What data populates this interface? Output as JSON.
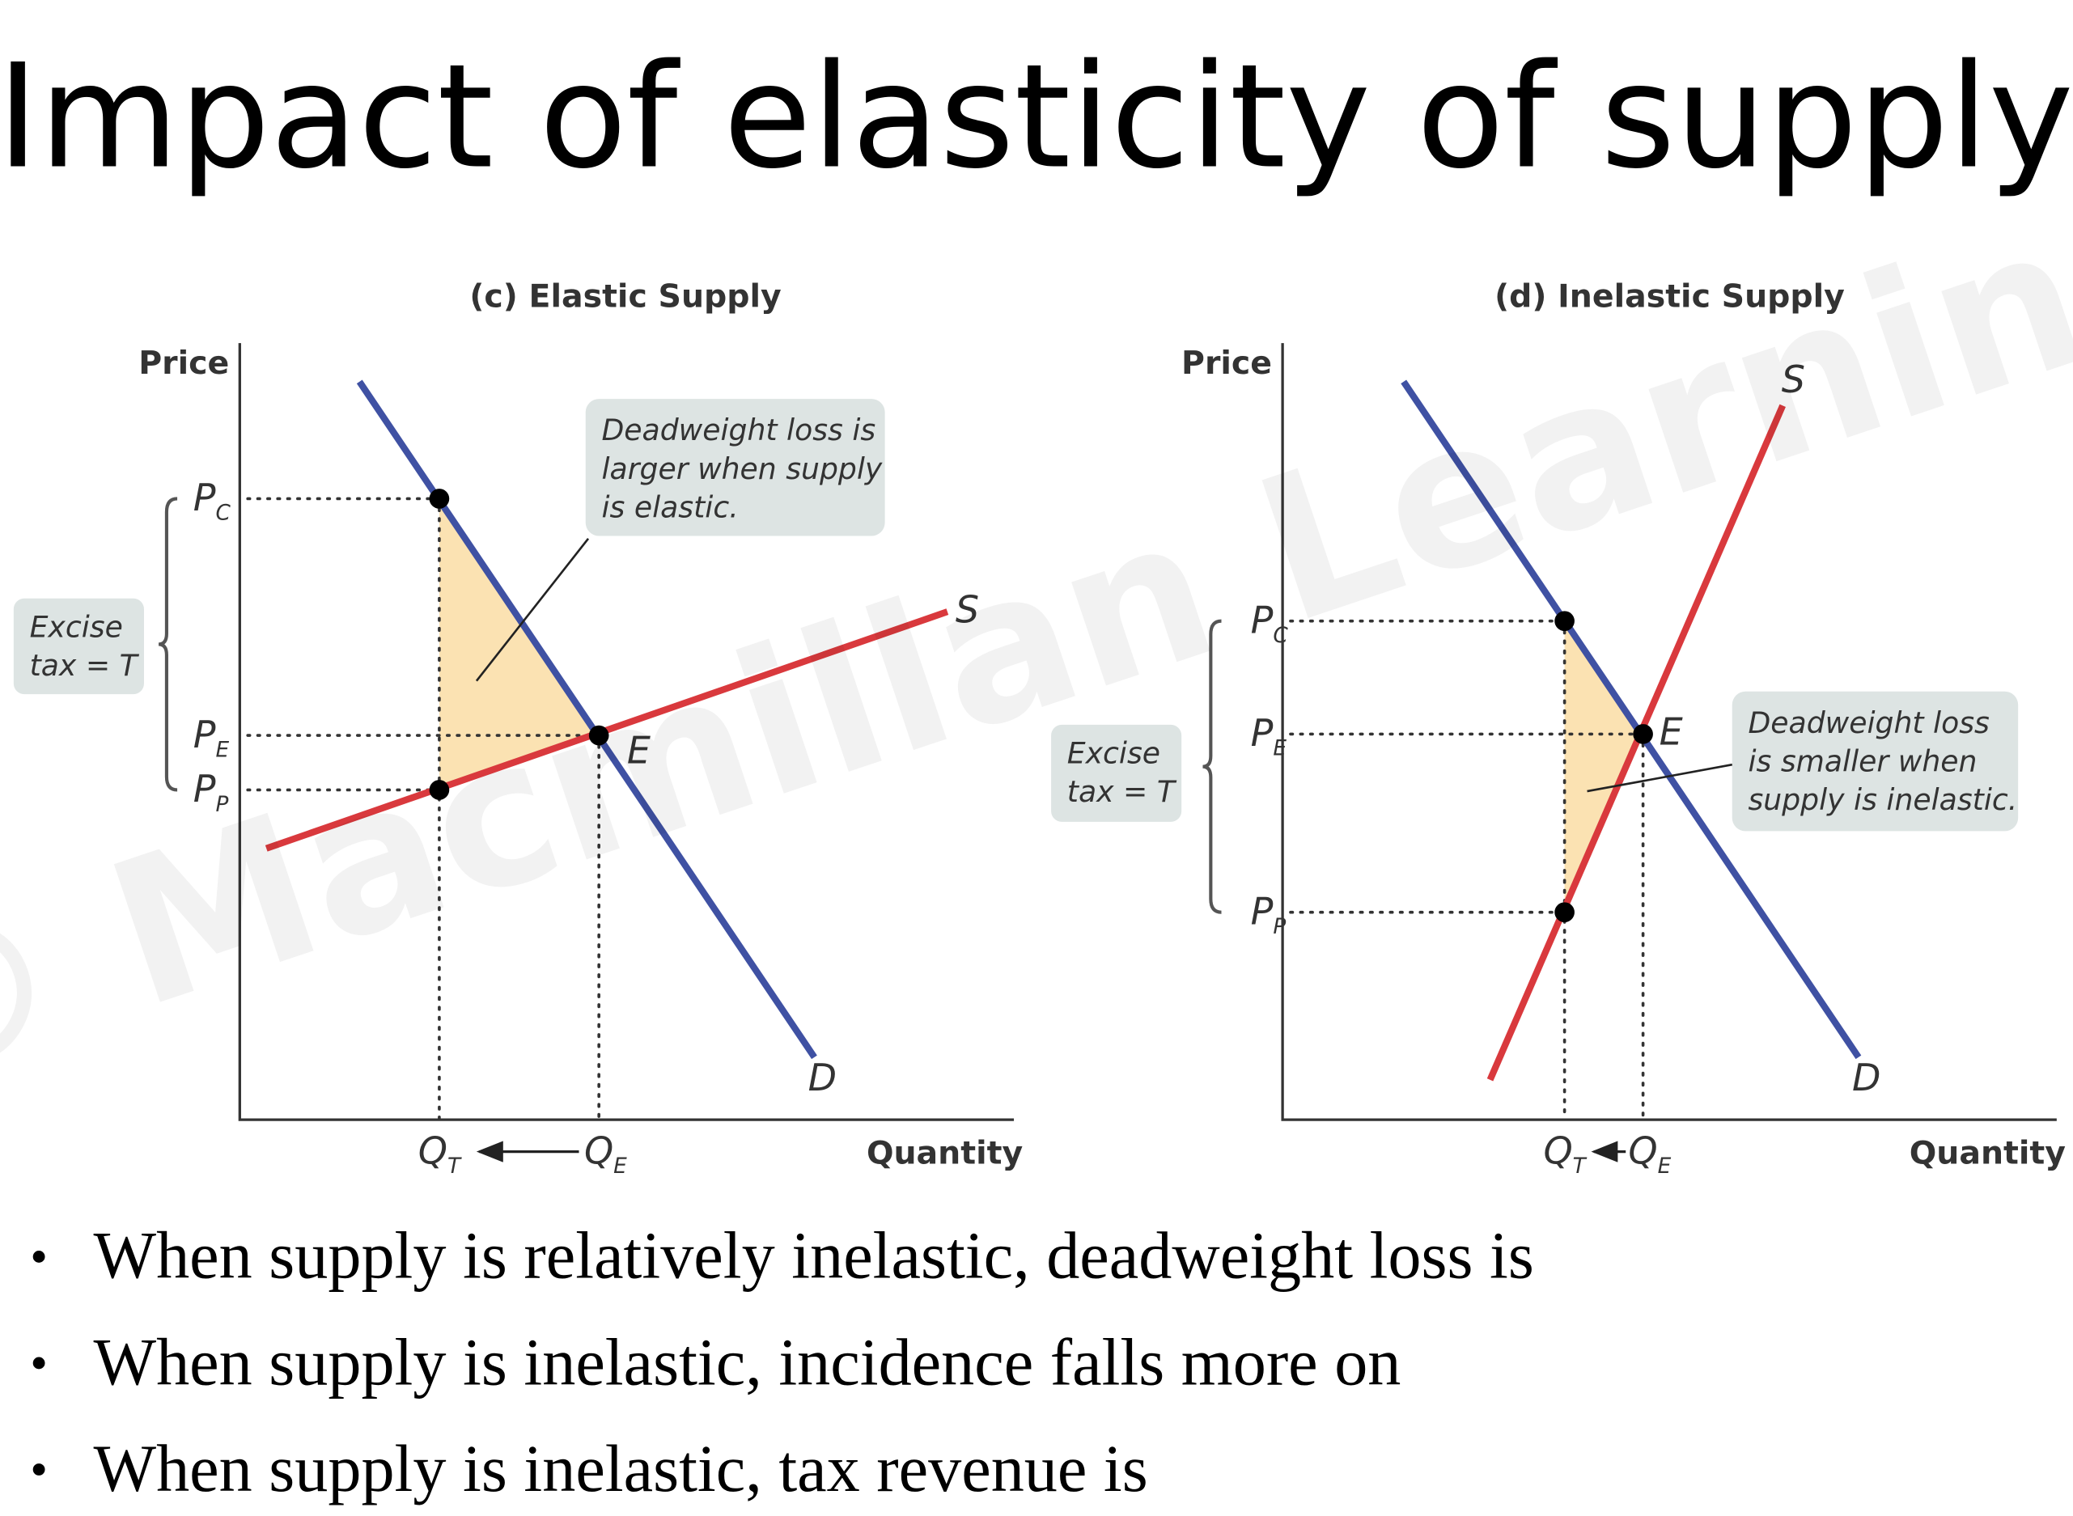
{
  "title": "Impact of elasticity of supply",
  "watermark": "© Macmillan Learning",
  "panels": [
    {
      "title": "(c) Elastic Supply",
      "y_axis_label": "Price",
      "x_axis_label": "Quantity",
      "supply_label": "S",
      "demand_label": "D",
      "equilibrium_label": "E",
      "price_labels": [
        {
          "main": "P",
          "sub": "C"
        },
        {
          "main": "P",
          "sub": "E"
        },
        {
          "main": "P",
          "sub": "P"
        }
      ],
      "quantity_labels": [
        {
          "main": "Q",
          "sub": "T"
        },
        {
          "main": "Q",
          "sub": "E"
        }
      ],
      "callout": [
        "Deadweight loss is",
        "larger when supply",
        "is elastic."
      ],
      "tax_label": [
        "Excise",
        "tax = T"
      ]
    },
    {
      "title": "(d) Inelastic Supply",
      "y_axis_label": "Price",
      "x_axis_label": "Quantity",
      "supply_label": "S",
      "demand_label": "D",
      "equilibrium_label": "E",
      "price_labels": [
        {
          "main": "P",
          "sub": "C"
        },
        {
          "main": "P",
          "sub": "E"
        },
        {
          "main": "P",
          "sub": "P"
        }
      ],
      "quantity_labels": [
        {
          "main": "Q",
          "sub": "T"
        },
        {
          "main": "Q",
          "sub": "E"
        }
      ],
      "callout": [
        "Deadweight loss",
        "is smaller when",
        "supply is inelastic."
      ],
      "tax_label": [
        "Excise",
        "tax = T"
      ]
    }
  ],
  "bullets": [
    "When supply is relatively inelastic, deadweight loss is",
    "When supply is inelastic, incidence falls more on",
    "When supply is inelastic, tax revenue is"
  ]
}
